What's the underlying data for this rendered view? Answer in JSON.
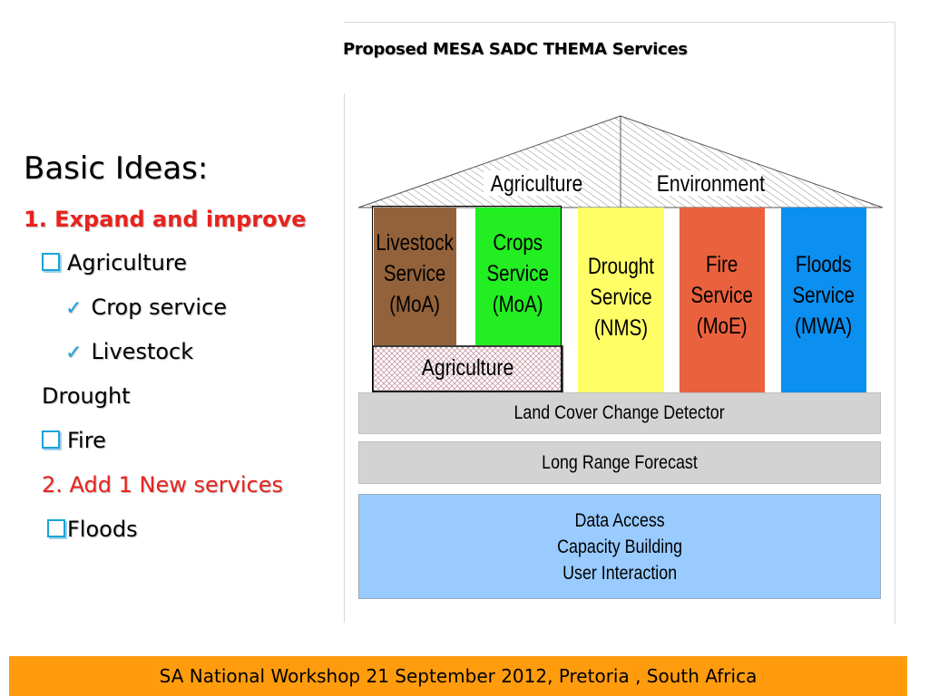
{
  "slide": {
    "heading": "Basic Ideas:",
    "point1": "1. Expand and improve",
    "agriculture": "Agriculture",
    "crop_service": "Crop service",
    "livestock": "Livestock",
    "drought": "Drought",
    "fire": "Fire",
    "point2": "2. Add 1 New services",
    "floods": "Floods"
  },
  "diagram": {
    "title": "Proposed MESA SADC THEMA Services",
    "roof_left": "Agriculture",
    "roof_right": "Environment",
    "columns": [
      {
        "lines": [
          "Livestock",
          "Service",
          "(MoA)"
        ],
        "color": "#94623a"
      },
      {
        "lines": [
          "Crops",
          "Service",
          "(MoA)"
        ],
        "color": "#22ee22"
      },
      {
        "lines": [
          "Drought",
          "Service",
          "(NMS)"
        ],
        "color": "#fffe66"
      },
      {
        "lines": [
          "Fire",
          "Service",
          "(MoE)"
        ],
        "color": "#ea613d"
      },
      {
        "lines": [
          "Floods",
          "Service",
          "(MWA)"
        ],
        "color": "#0b8ff0"
      }
    ],
    "agri_base": "Agriculture",
    "land_cover": "Land Cover Change Detector",
    "long_range": "Long Range Forecast",
    "data_access": [
      "Data Access",
      "Capacity Building",
      "User Interaction"
    ],
    "data_color": "#99cbff"
  },
  "footer": "SA  National Workshop 21 September 2012, Pretoria , South Africa"
}
